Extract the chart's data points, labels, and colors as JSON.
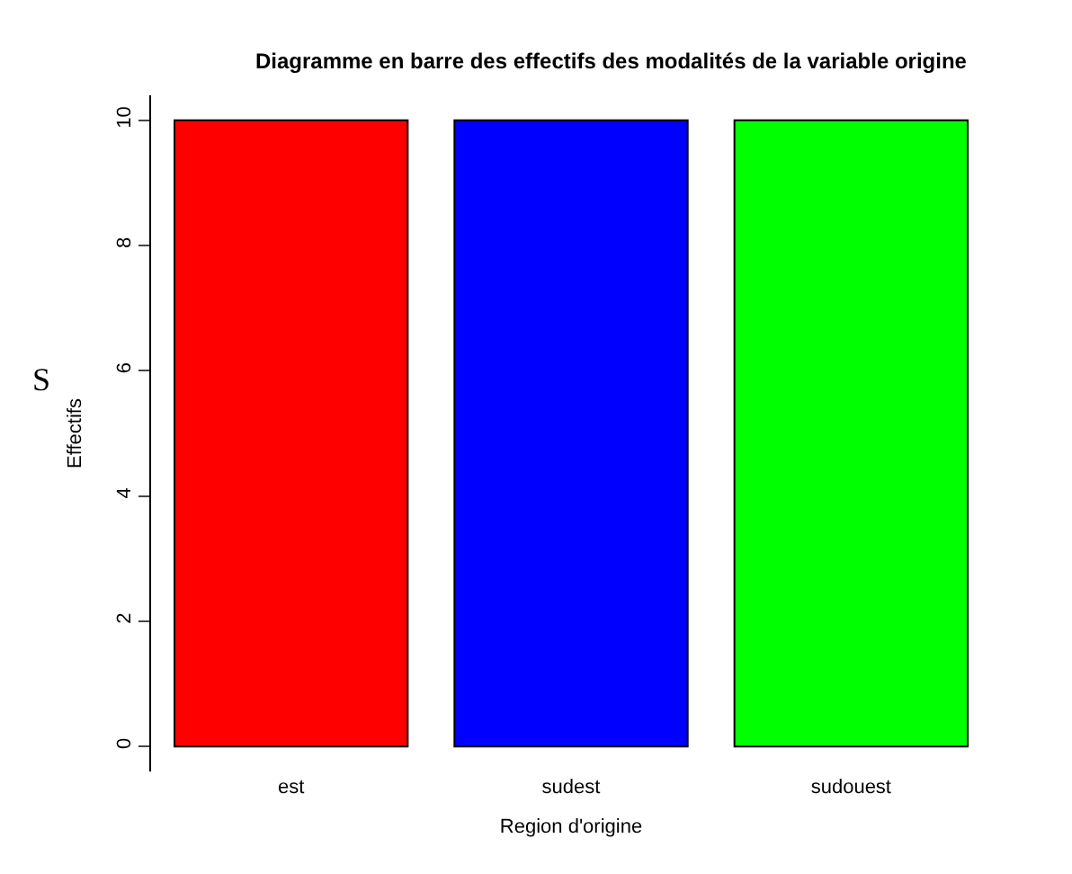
{
  "chart_data": {
    "type": "bar",
    "title": "Diagramme en barre des effectifs des modalités de la variable origine",
    "xlabel": "Region d'origine",
    "ylabel": "Effectifs",
    "categories": [
      "est",
      "sudest",
      "sudouest"
    ],
    "values": [
      10,
      10,
      10
    ],
    "colors": [
      "#ff0000",
      "#0000ff",
      "#00ff00"
    ],
    "ylim": [
      -0.4,
      10.4
    ],
    "yticks": [
      0,
      2,
      4,
      6,
      8,
      10
    ],
    "annotations": [
      "S"
    ]
  }
}
